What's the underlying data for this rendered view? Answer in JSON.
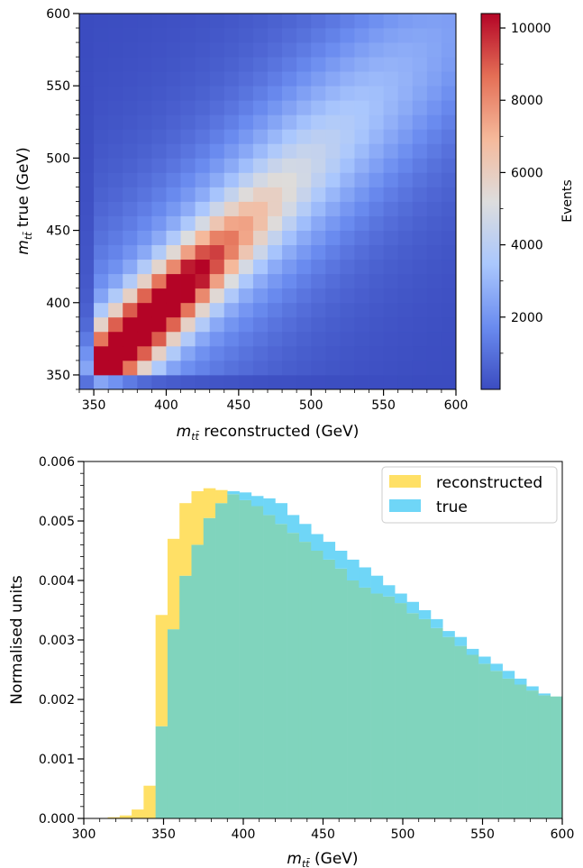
{
  "colors": {
    "reconstructed": "#FFE066",
    "true": "#6FD6F7",
    "overlap": "#80D4BD",
    "coolwarm": [
      "#3b4cc0",
      "#6a8bef",
      "#aac7fd",
      "#dddddd",
      "#f5b99b",
      "#e46f56",
      "#b40426"
    ]
  },
  "chart_data": [
    {
      "type": "heatmap",
      "xlabel_var": "m",
      "xlabel_sub": "tt̄",
      "xlabel_rest": " reconstructed (GeV)",
      "ylabel_var": "m",
      "ylabel_sub": "tt̄",
      "ylabel_rest": " true (GeV)",
      "xlim": [
        340,
        600
      ],
      "ylim": [
        340,
        600
      ],
      "bin_width": 10,
      "x_ticks": [
        "350",
        "400",
        "450",
        "500",
        "550",
        "600"
      ],
      "y_ticks": [
        "350",
        "400",
        "450",
        "500",
        "550",
        "600"
      ],
      "colorbar": {
        "label": "Events",
        "range": [
          0,
          10400
        ],
        "ticks": [
          "2000",
          "4000",
          "6000",
          "8000",
          "10000"
        ]
      },
      "peak": {
        "x": 375,
        "y": 375,
        "value": 10400
      }
    },
    {
      "type": "histogram",
      "xlabel_var": "m",
      "xlabel_sub": "tt̄",
      "xlabel_rest": " (GeV)",
      "ylabel": "Normalised units",
      "xlim": [
        300,
        600
      ],
      "ylim": [
        0,
        0.006
      ],
      "x_ticks": [
        "300",
        "350",
        "400",
        "450",
        "500",
        "550",
        "600"
      ],
      "y_ticks": [
        "0.000",
        "0.001",
        "0.002",
        "0.003",
        "0.004",
        "0.005",
        "0.006"
      ],
      "bin_edges_start": 300,
      "bin_width": 7.5,
      "legend": {
        "placement": "top-right"
      },
      "series": [
        {
          "name": "reconstructed",
          "values": [
            0,
            0,
            2e-05,
            5e-05,
            0.00015,
            0.00055,
            0.00342,
            0.0047,
            0.0053,
            0.0055,
            0.00555,
            0.00552,
            0.00545,
            0.00535,
            0.00525,
            0.0051,
            0.00495,
            0.0048,
            0.00465,
            0.0045,
            0.00435,
            0.0042,
            0.004,
            0.00388,
            0.00378,
            0.00373,
            0.00362,
            0.00345,
            0.00335,
            0.0032,
            0.00305,
            0.0029,
            0.00275,
            0.0026,
            0.00248,
            0.00235,
            0.00225,
            0.00215,
            0.00207,
            0.00205
          ]
        },
        {
          "name": "true",
          "values": [
            0,
            0,
            0,
            0,
            0,
            0,
            0.00155,
            0.00318,
            0.00408,
            0.0046,
            0.00505,
            0.0053,
            0.0055,
            0.00548,
            0.00542,
            0.00538,
            0.0053,
            0.0051,
            0.00495,
            0.00478,
            0.00465,
            0.0045,
            0.00435,
            0.00422,
            0.00408,
            0.00392,
            0.00378,
            0.00364,
            0.0035,
            0.00335,
            0.00315,
            0.00305,
            0.00285,
            0.00272,
            0.0026,
            0.00248,
            0.00235,
            0.00222,
            0.0021,
            0.00205
          ]
        }
      ]
    }
  ]
}
